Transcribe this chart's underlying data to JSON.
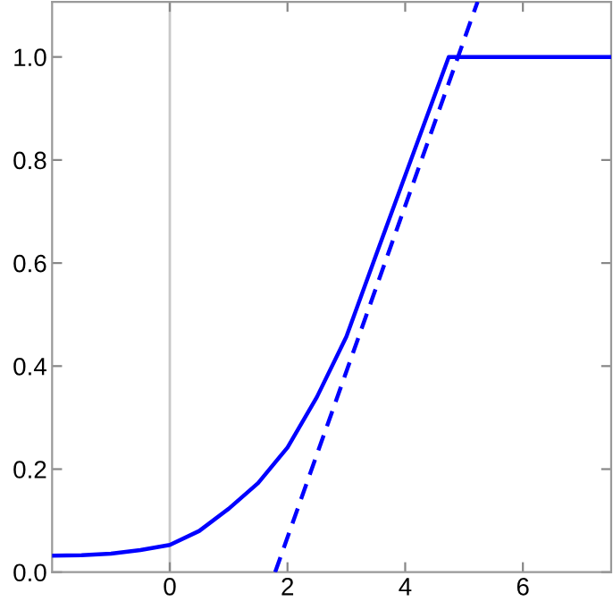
{
  "chart_data": {
    "type": "line",
    "series": [
      {
        "color": "#0000ff",
        "line_style": "solid",
        "x": [
          -2,
          -1.5,
          -1,
          -0.5,
          0,
          0.5,
          1,
          1.5,
          2,
          2.5,
          3,
          3.5,
          4,
          4.74,
          7.5
        ],
        "values": [
          0.032,
          0.033,
          0.036,
          0.043,
          0.053,
          0.08,
          0.123,
          0.173,
          0.242,
          0.34,
          0.457,
          0.614,
          0.77,
          1.0,
          1.0
        ]
      },
      {
        "color": "#0000ff",
        "line_style": "dashed",
        "x": [
          1.79,
          5.23
        ],
        "values": [
          0,
          1.107
        ]
      }
    ],
    "xlim": [
      -2,
      7.5
    ],
    "ylim": [
      0,
      1.107
    ],
    "xticks": [
      0,
      2,
      4,
      6
    ],
    "yticks": [
      {
        "value": 0,
        "label": "0.0"
      },
      0.2,
      0.4,
      0.6,
      0.8,
      {
        "value": 1,
        "label": "1.0"
      }
    ],
    "ref_lines": [
      {
        "axis": "x",
        "value": 0,
        "color": "#c8c8c8"
      }
    ],
    "grid": false,
    "legend": false
  }
}
